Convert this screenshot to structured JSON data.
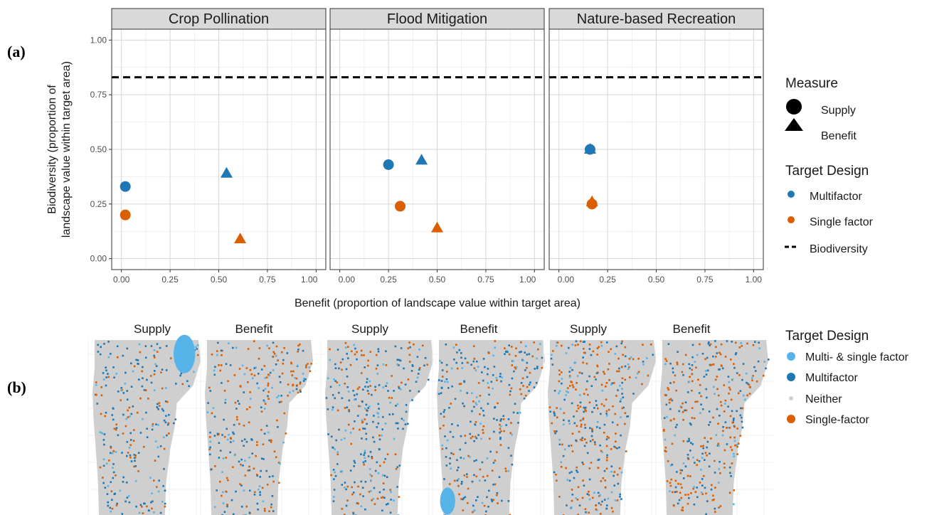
{
  "panel_labels": {
    "a": "(a)",
    "b": "(b)"
  },
  "chart_data": [
    {
      "type": "scatter",
      "facets": [
        "Crop Pollination",
        "Flood Mitigation",
        "Nature-based Recreation"
      ],
      "xlabel": "Benefit (proportion of landscape value within target area)",
      "ylabel_lines": [
        "Biodiversity (proportion of",
        "landscape value within target area)"
      ],
      "xlim": [
        -0.05,
        1.05
      ],
      "ylim": [
        -0.05,
        1.05
      ],
      "x_ticks": [
        0,
        0.25,
        0.5,
        0.75,
        1
      ],
      "x_tick_labels": [
        "0.00",
        "0.25",
        "0.50",
        "0.75",
        "1.00"
      ],
      "y_ticks": [
        0,
        0.25,
        0.5,
        0.75,
        1
      ],
      "y_tick_labels": [
        "0.00",
        "0.25",
        "0.50",
        "0.75",
        "1.00"
      ],
      "grid": true,
      "reference_line": {
        "name": "Biodiversity",
        "y": 0.83,
        "style": "dashed"
      },
      "series": [
        {
          "facet": "Crop Pollination",
          "design": "Multifactor",
          "measure": "Supply",
          "x": 0.02,
          "y": 0.33
        },
        {
          "facet": "Crop Pollination",
          "design": "Multifactor",
          "measure": "Benefit",
          "x": 0.54,
          "y": 0.39
        },
        {
          "facet": "Crop Pollination",
          "design": "Single factor",
          "measure": "Supply",
          "x": 0.02,
          "y": 0.2
        },
        {
          "facet": "Crop Pollination",
          "design": "Single factor",
          "measure": "Benefit",
          "x": 0.61,
          "y": 0.09
        },
        {
          "facet": "Flood Mitigation",
          "design": "Multifactor",
          "measure": "Supply",
          "x": 0.25,
          "y": 0.43
        },
        {
          "facet": "Flood Mitigation",
          "design": "Multifactor",
          "measure": "Benefit",
          "x": 0.42,
          "y": 0.45
        },
        {
          "facet": "Flood Mitigation",
          "design": "Single factor",
          "measure": "Supply",
          "x": 0.31,
          "y": 0.24
        },
        {
          "facet": "Flood Mitigation",
          "design": "Single factor",
          "measure": "Benefit",
          "x": 0.5,
          "y": 0.14
        },
        {
          "facet": "Nature-based Recreation",
          "design": "Multifactor",
          "measure": "Supply",
          "x": 0.16,
          "y": 0.5
        },
        {
          "facet": "Nature-based Recreation",
          "design": "Multifactor",
          "measure": "Benefit",
          "x": 0.16,
          "y": 0.5
        },
        {
          "facet": "Nature-based Recreation",
          "design": "Single factor",
          "measure": "Supply",
          "x": 0.17,
          "y": 0.25
        },
        {
          "facet": "Nature-based Recreation",
          "design": "Single factor",
          "measure": "Benefit",
          "x": 0.17,
          "y": 0.26
        }
      ],
      "legend": {
        "placement": "right",
        "measure_title": "Measure",
        "measure_items": [
          "Supply",
          "Benefit"
        ],
        "design_title": "Target Design",
        "design_items": [
          "Multifactor",
          "Single factor"
        ],
        "line_item": "Biodiversity"
      },
      "colors": {
        "Multifactor": "#1f78b4",
        "Single factor": "#d95f02",
        "Biodiversity": "#000000"
      }
    },
    {
      "type": "map",
      "panel_titles": [
        "Supply",
        "Benefit",
        "Supply",
        "Benefit",
        "Supply",
        "Benefit"
      ],
      "legend": {
        "placement": "right",
        "title": "Target Design",
        "items": [
          "Multi- & single factor",
          "Multifactor",
          "Neither",
          "Single-factor"
        ]
      },
      "colors": {
        "Multi- & single factor": "#56b4e9",
        "Multifactor": "#1f78b4",
        "Neither": "#cfcfcf",
        "Single-factor": "#d95f02"
      }
    }
  ]
}
